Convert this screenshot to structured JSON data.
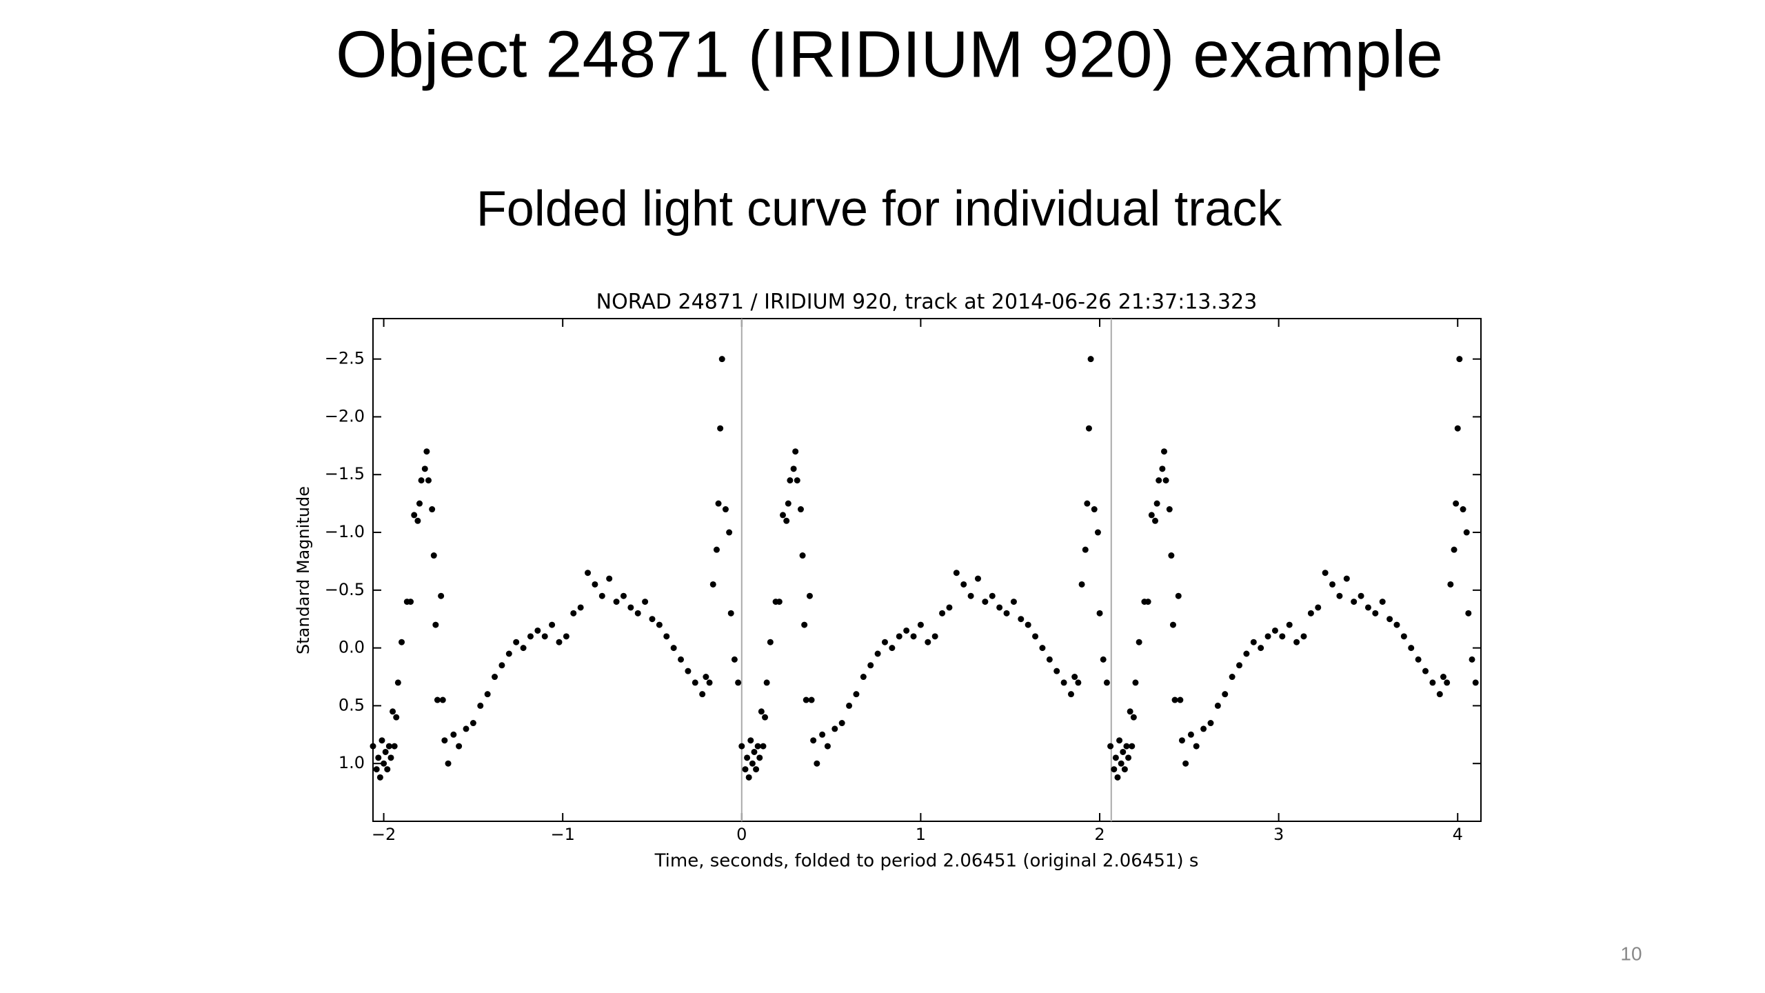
{
  "title": "Object 24871 (IRIDIUM 920) example",
  "subtitle": "Folded light curve for individual track",
  "page_number": 10,
  "chart_data": {
    "type": "scatter",
    "title": "NORAD 24871 / IRIDIUM 920, track at 2014-06-26 21:37:13.323",
    "x_label": "Time, seconds, folded to period 2.06451 (original 2.06451) s",
    "y_label": "Standard Magnitude",
    "color": "#000000",
    "xlim": [
      -2.06,
      4.13
    ],
    "ylim": [
      1.5,
      -2.85
    ],
    "xticks": [
      {
        "value": -2,
        "label": "−2"
      },
      {
        "value": -1,
        "label": "−1"
      },
      0,
      1,
      2,
      3,
      4
    ],
    "yticks": [
      {
        "value": -2.5,
        "label": "−2.5"
      },
      {
        "value": -2,
        "label": "−2.0"
      },
      {
        "value": -1.5,
        "label": "−1.5"
      },
      {
        "value": -1,
        "label": "−1.0"
      },
      {
        "value": -0.5,
        "label": "−0.5"
      },
      {
        "value": 0,
        "label": "0.0"
      },
      0.5,
      {
        "value": 1,
        "label": "1.0"
      }
    ],
    "vlines": [
      0,
      2.06451
    ],
    "x": [
      -2.06,
      -2.04,
      -2.03,
      -2.02,
      -2.01,
      -2.0,
      -1.99,
      -1.98,
      -1.97,
      -1.96,
      -1.95,
      -1.94,
      -1.93,
      -1.92,
      -1.9,
      -1.87,
      -1.85,
      -1.83,
      -1.81,
      -1.8,
      -1.79,
      -1.77,
      -1.76,
      -1.75,
      -1.73,
      -1.72,
      -1.71,
      -1.7,
      -1.68,
      -1.67,
      -1.66,
      -1.64,
      -1.61,
      -1.58,
      -1.54,
      -1.5,
      -1.46,
      -1.42,
      -1.38,
      -1.34,
      -1.3,
      -1.26,
      -1.22,
      -1.18,
      -1.14,
      -1.1,
      -1.06,
      -1.02,
      -0.98,
      -0.94,
      -0.9,
      -0.86,
      -0.82,
      -0.78,
      -0.74,
      -0.7,
      -0.66,
      -0.62,
      -0.58,
      -0.54,
      -0.5,
      -0.46,
      -0.42,
      -0.38,
      -0.34,
      -0.3,
      -0.26,
      -0.22,
      -0.2,
      -0.18,
      -0.16,
      -0.14,
      -0.13,
      -0.12,
      -0.11,
      -0.09,
      -0.07,
      -0.06,
      -0.04,
      -0.02,
      0.0,
      0.02,
      0.03,
      0.04,
      0.05,
      0.06,
      0.07,
      0.08,
      0.09,
      0.1,
      0.11,
      0.12,
      0.13,
      0.14,
      0.16,
      0.19,
      0.21,
      0.23,
      0.25,
      0.26,
      0.27,
      0.29,
      0.3,
      0.31,
      0.33,
      0.34,
      0.35,
      0.36,
      0.38,
      0.39,
      0.4,
      0.42,
      0.45,
      0.48,
      0.52,
      0.56,
      0.6,
      0.64,
      0.68,
      0.72,
      0.76,
      0.8,
      0.84,
      0.88,
      0.92,
      0.96,
      1.0,
      1.04,
      1.08,
      1.12,
      1.16,
      1.2,
      1.24,
      1.28,
      1.32,
      1.36,
      1.4,
      1.44,
      1.48,
      1.52,
      1.56,
      1.6,
      1.64,
      1.68,
      1.72,
      1.76,
      1.8,
      1.84,
      1.86,
      1.88,
      1.9,
      1.92,
      1.93,
      1.94,
      1.95,
      1.97,
      1.99,
      2.0,
      2.02,
      2.04,
      2.06,
      2.08,
      2.09,
      2.1,
      2.11,
      2.12,
      2.13,
      2.14,
      2.15,
      2.16,
      2.17,
      2.18,
      2.19,
      2.2,
      2.22,
      2.25,
      2.27,
      2.29,
      2.31,
      2.32,
      2.33,
      2.35,
      2.36,
      2.37,
      2.39,
      2.4,
      2.41,
      2.42,
      2.44,
      2.45,
      2.46,
      2.48,
      2.51,
      2.54,
      2.58,
      2.62,
      2.66,
      2.7,
      2.74,
      2.78,
      2.82,
      2.86,
      2.9,
      2.94,
      2.98,
      3.02,
      3.06,
      3.1,
      3.14,
      3.18,
      3.22,
      3.26,
      3.3,
      3.34,
      3.38,
      3.42,
      3.46,
      3.5,
      3.54,
      3.58,
      3.62,
      3.66,
      3.7,
      3.74,
      3.78,
      3.82,
      3.86,
      3.9,
      3.92,
      3.94,
      3.96,
      3.98,
      3.99,
      4.0,
      4.01,
      4.03,
      4.05,
      4.06,
      4.08,
      4.1
    ],
    "values": [
      0.85,
      1.05,
      0.95,
      1.12,
      0.8,
      1.0,
      0.9,
      1.05,
      0.85,
      0.95,
      0.55,
      0.85,
      0.6,
      0.3,
      -0.05,
      -0.4,
      -0.4,
      -1.15,
      -1.1,
      -1.25,
      -1.45,
      -1.55,
      -1.7,
      -1.45,
      -1.2,
      -0.8,
      -0.2,
      0.45,
      -0.45,
      0.45,
      0.8,
      1.0,
      0.75,
      0.85,
      0.7,
      0.65,
      0.5,
      0.4,
      0.25,
      0.15,
      0.05,
      -0.05,
      0,
      -0.1,
      -0.15,
      -0.1,
      -0.2,
      -0.05,
      -0.1,
      -0.3,
      -0.35,
      -0.65,
      -0.55,
      -0.45,
      -0.6,
      -0.4,
      -0.45,
      -0.35,
      -0.3,
      -0.4,
      -0.25,
      -0.2,
      -0.1,
      0,
      0.1,
      0.2,
      0.3,
      0.4,
      0.25,
      0.3,
      -0.55,
      -0.85,
      -1.25,
      -1.9,
      -2.5,
      -1.2,
      -1.0,
      -0.3,
      0.1,
      0.3,
      0.85,
      1.05,
      0.95,
      1.12,
      0.8,
      1.0,
      0.9,
      1.05,
      0.85,
      0.95,
      0.55,
      0.85,
      0.6,
      0.3,
      -0.05,
      -0.4,
      -0.4,
      -1.15,
      -1.1,
      -1.25,
      -1.45,
      -1.55,
      -1.7,
      -1.45,
      -1.2,
      -0.8,
      -0.2,
      0.45,
      -0.45,
      0.45,
      0.8,
      1.0,
      0.75,
      0.85,
      0.7,
      0.65,
      0.5,
      0.4,
      0.25,
      0.15,
      0.05,
      -0.05,
      0,
      -0.1,
      -0.15,
      -0.1,
      -0.2,
      -0.05,
      -0.1,
      -0.3,
      -0.35,
      -0.65,
      -0.55,
      -0.45,
      -0.6,
      -0.4,
      -0.45,
      -0.35,
      -0.3,
      -0.4,
      -0.25,
      -0.2,
      -0.1,
      0,
      0.1,
      0.2,
      0.3,
      0.4,
      0.25,
      0.3,
      -0.55,
      -0.85,
      -1.25,
      -1.9,
      -2.5,
      -1.2,
      -1.0,
      -0.3,
      0.1,
      0.3,
      0.85,
      1.05,
      0.95,
      1.12,
      0.8,
      1.0,
      0.9,
      1.05,
      0.85,
      0.95,
      0.55,
      0.85,
      0.6,
      0.3,
      -0.05,
      -0.4,
      -0.4,
      -1.15,
      -1.1,
      -1.25,
      -1.45,
      -1.55,
      -1.7,
      -1.45,
      -1.2,
      -0.8,
      -0.2,
      0.45,
      -0.45,
      0.45,
      0.8,
      1.0,
      0.75,
      0.85,
      0.7,
      0.65,
      0.5,
      0.4,
      0.25,
      0.15,
      0.05,
      -0.05,
      0,
      -0.1,
      -0.15,
      -0.1,
      -0.2,
      -0.05,
      -0.1,
      -0.3,
      -0.35,
      -0.65,
      -0.55,
      -0.45,
      -0.6,
      -0.4,
      -0.45,
      -0.35,
      -0.3,
      -0.4,
      -0.25,
      -0.2,
      -0.1,
      0,
      0.1,
      0.2,
      0.3,
      0.4,
      0.25,
      0.3,
      -0.55,
      -0.85,
      -1.25,
      -1.9,
      -2.5,
      -1.2,
      -1.0,
      -0.3,
      0.1,
      0.3
    ]
  }
}
